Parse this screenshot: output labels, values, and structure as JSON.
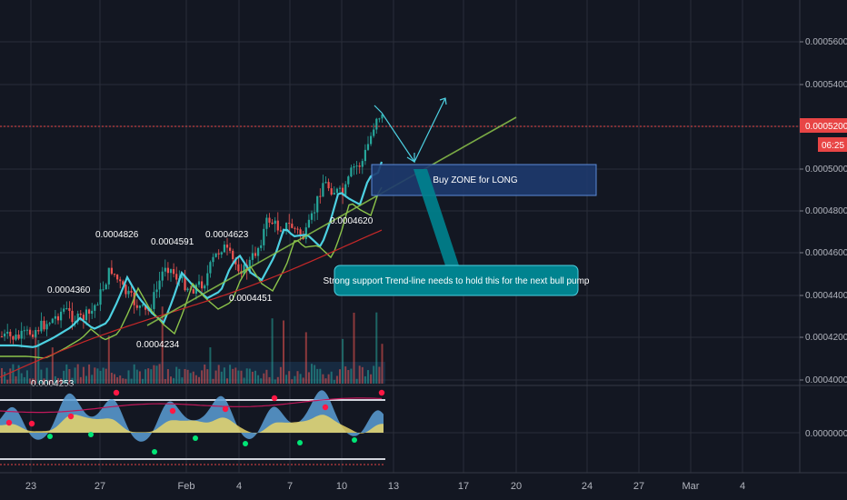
{
  "chart_data": {
    "type": "candlestick",
    "price_axis_labels": [
      "0.0005600",
      "0.0005400",
      "0.0005200",
      "0.0005000",
      "0.0004800",
      "0.0004600",
      "0.0004400",
      "0.0004200",
      "0.0004000"
    ],
    "oscillator_axis_label": "0.0000000",
    "current_price": "0.0005200",
    "countdown": "06:25",
    "date_labels": [
      "23",
      "27",
      "Feb",
      "4",
      "7",
      "10",
      "13",
      "17",
      "20",
      "24",
      "27",
      "Mar",
      "4"
    ],
    "annotations": [
      "0.0004360",
      "0.0004826",
      "0.0004591",
      "0.0004623",
      "0.0004451",
      "0.0004234",
      "0.0004620",
      "0.0004253"
    ],
    "buy_zone_label": "Buy ZONE for LONG",
    "trendline_note": "Strong support Trend-line needs to hold  this for the next bull pump",
    "ylim": [
      0.0004,
      0.00057
    ],
    "grid": true,
    "colors": {
      "background": "#131722",
      "grid": "#2a2e39",
      "up": "#26a69a",
      "down": "#ef5350",
      "ema_fast": "#4dd0e1",
      "ema_mid": "#8bc34a",
      "ema_slow": "#c62828",
      "zone_fill": "#1e3a6e",
      "zone_border": "#5b8bd8",
      "note_fill": "#00838f",
      "price_tag": "#e84545",
      "countdown_tag": "#e84545"
    }
  }
}
